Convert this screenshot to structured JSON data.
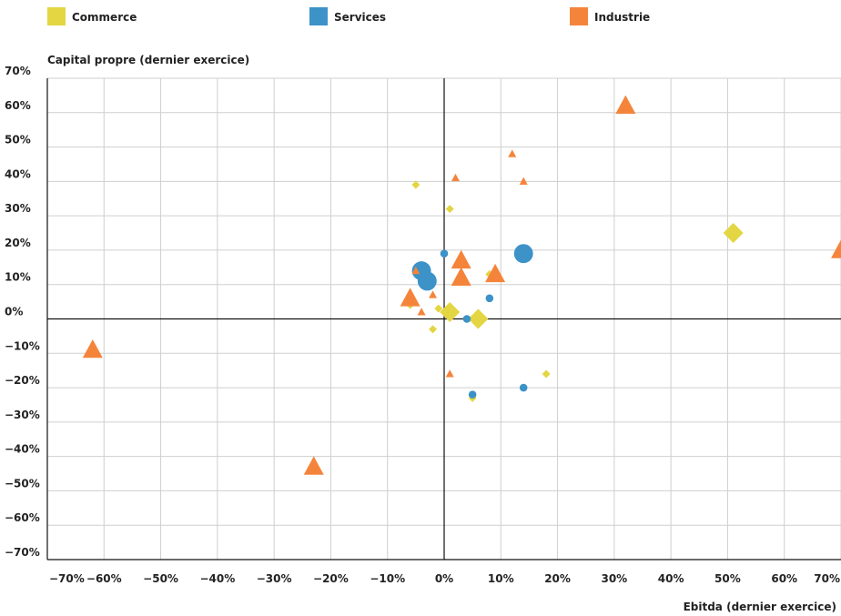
{
  "colors": {
    "commerce": "#e3d642",
    "services": "#3d92c8",
    "industrie": "#f5843b"
  },
  "chart_data": {
    "type": "scatter",
    "title": "",
    "xlabel": "Ebitda (dernier exercice)",
    "ylabel": "Capital propre (dernier exercice)",
    "xlim": [
      -70,
      70
    ],
    "ylim": [
      -70,
      70
    ],
    "grid": true,
    "legend_position": "top",
    "x_ticks": [
      "-70%",
      "-60%",
      "-50%",
      "-40%",
      "-30%",
      "-20%",
      "-10%",
      "0%",
      "10%",
      "20%",
      "30%",
      "40%",
      "50%",
      "60%",
      "70%"
    ],
    "y_ticks": [
      "70%",
      "60%",
      "50%",
      "40%",
      "30%",
      "20%",
      "10%",
      "0%",
      "-10%",
      "-20%",
      "-30%",
      "-40%",
      "-50%",
      "-60%",
      "-70%"
    ],
    "series": [
      {
        "name": "Commerce",
        "marker": "diamond",
        "color": "#e3d642",
        "points": [
          {
            "x": -5,
            "y": 39,
            "size": 1
          },
          {
            "x": 1,
            "y": 32,
            "size": 1
          },
          {
            "x": 8,
            "y": 13,
            "size": 1
          },
          {
            "x": 51,
            "y": 25,
            "size": 3
          },
          {
            "x": -6,
            "y": 5,
            "size": 2
          },
          {
            "x": -1,
            "y": 3,
            "size": 1
          },
          {
            "x": 1,
            "y": 2,
            "size": 3
          },
          {
            "x": 6,
            "y": 0,
            "size": 3
          },
          {
            "x": -2,
            "y": -3,
            "size": 1
          },
          {
            "x": 18,
            "y": -16,
            "size": 1
          },
          {
            "x": 5,
            "y": -23,
            "size": 1
          }
        ]
      },
      {
        "name": "Services",
        "marker": "circle",
        "color": "#3d92c8",
        "points": [
          {
            "x": 0,
            "y": 19,
            "size": 1
          },
          {
            "x": 14,
            "y": 19,
            "size": 3
          },
          {
            "x": -4,
            "y": 14,
            "size": 3
          },
          {
            "x": -3,
            "y": 11,
            "size": 3
          },
          {
            "x": 8,
            "y": 6,
            "size": 1
          },
          {
            "x": 4,
            "y": 0,
            "size": 1
          },
          {
            "x": 5,
            "y": -22,
            "size": 1
          },
          {
            "x": 14,
            "y": -20,
            "size": 1
          }
        ]
      },
      {
        "name": "Industrie",
        "marker": "triangle",
        "color": "#f5843b",
        "points": [
          {
            "x": 32,
            "y": 62,
            "size": 3
          },
          {
            "x": 12,
            "y": 48,
            "size": 1
          },
          {
            "x": 2,
            "y": 41,
            "size": 1
          },
          {
            "x": 14,
            "y": 40,
            "size": 1
          },
          {
            "x": 70,
            "y": 20,
            "size": 3
          },
          {
            "x": 3,
            "y": 17,
            "size": 3
          },
          {
            "x": 9,
            "y": 13,
            "size": 3
          },
          {
            "x": -5,
            "y": 14,
            "size": 1
          },
          {
            "x": 3,
            "y": 12,
            "size": 3
          },
          {
            "x": -2,
            "y": 7,
            "size": 1
          },
          {
            "x": -6,
            "y": 6,
            "size": 3
          },
          {
            "x": -4,
            "y": 2,
            "size": 1
          },
          {
            "x": -62,
            "y": -9,
            "size": 3
          },
          {
            "x": 1,
            "y": -16,
            "size": 1
          },
          {
            "x": -23,
            "y": -43,
            "size": 3
          }
        ]
      }
    ]
  }
}
